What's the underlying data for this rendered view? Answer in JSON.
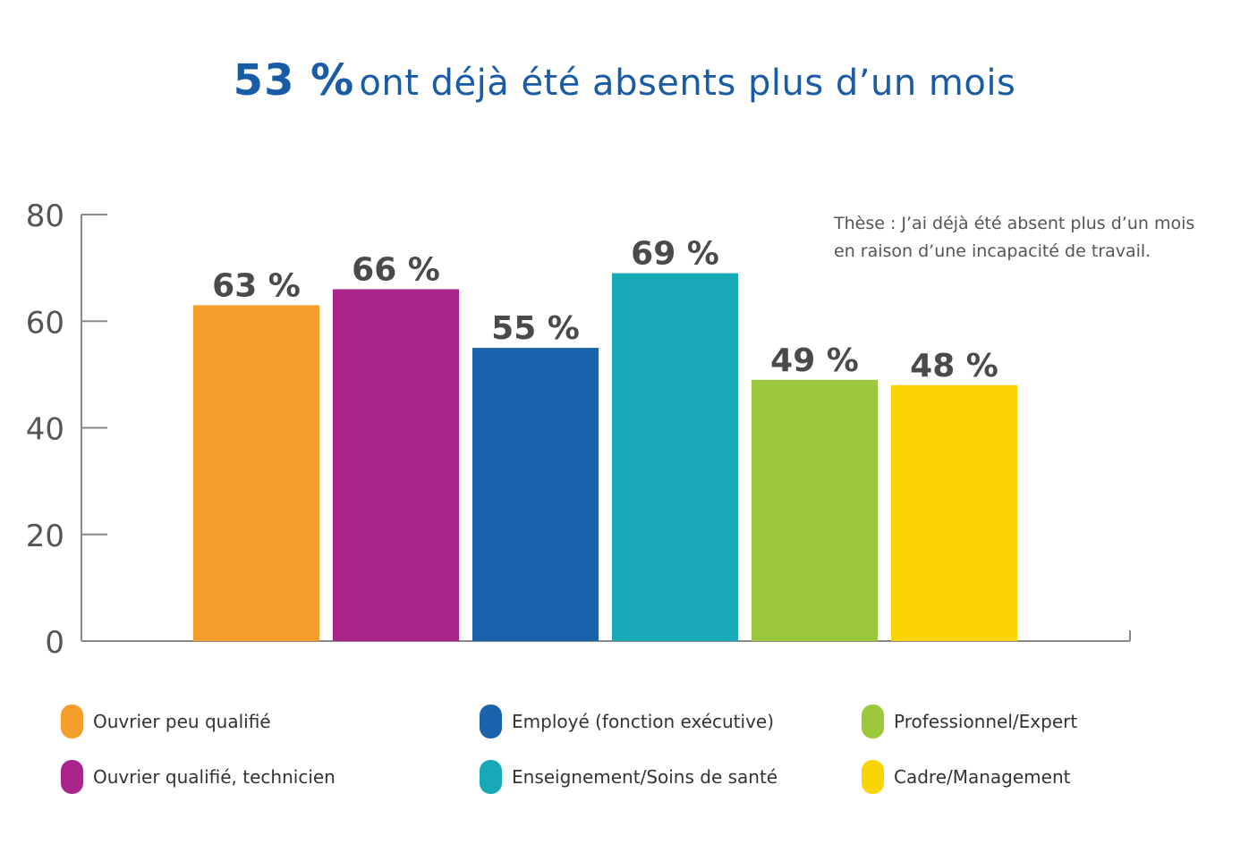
{
  "title": {
    "highlight": "53 %",
    "rest": "ont déjà été absents plus d’un mois"
  },
  "note": {
    "line1": "Thèse : J’ai déjà été absent plus d’un mois",
    "line2": "en raison d’une incapacité de travail."
  },
  "chart_data": {
    "type": "bar",
    "categories": [
      "Ouvrier peu qualifié",
      "Ouvrier qualifié, technicien",
      "Employé (fonction exécutive)",
      "Enseignement/Soins de santé",
      "Professionnel/Expert",
      "Cadre/Management"
    ],
    "values": [
      63,
      66,
      55,
      69,
      49,
      48
    ],
    "data_labels": [
      "63 %",
      "66 %",
      "55 %",
      "69 %",
      "49 %",
      "48 %"
    ],
    "colors": [
      "#f59e2c",
      "#a9258b",
      "#1b62ad",
      "#17a9b5",
      "#9bc83c",
      "#f9d302"
    ],
    "ylim": [
      0,
      80
    ],
    "yticks": [
      0,
      20,
      40,
      60,
      80
    ],
    "ytick_labels": [
      "0",
      "20",
      "40",
      "60",
      "80"
    ],
    "grid": false,
    "legend_position": "bottom"
  },
  "legend": [
    {
      "label": "Ouvrier peu qualifié",
      "color": "#f59e2c"
    },
    {
      "label": "Ouvrier qualifié, technicien",
      "color": "#a9258b"
    },
    {
      "label": "Employé (fonction exécutive)",
      "color": "#1b62ad"
    },
    {
      "label": "Enseignement/Soins de santé",
      "color": "#17a9b5"
    },
    {
      "label": "Professionnel/Expert",
      "color": "#9bc83c"
    },
    {
      "label": "Cadre/Management",
      "color": "#f9d302"
    }
  ]
}
